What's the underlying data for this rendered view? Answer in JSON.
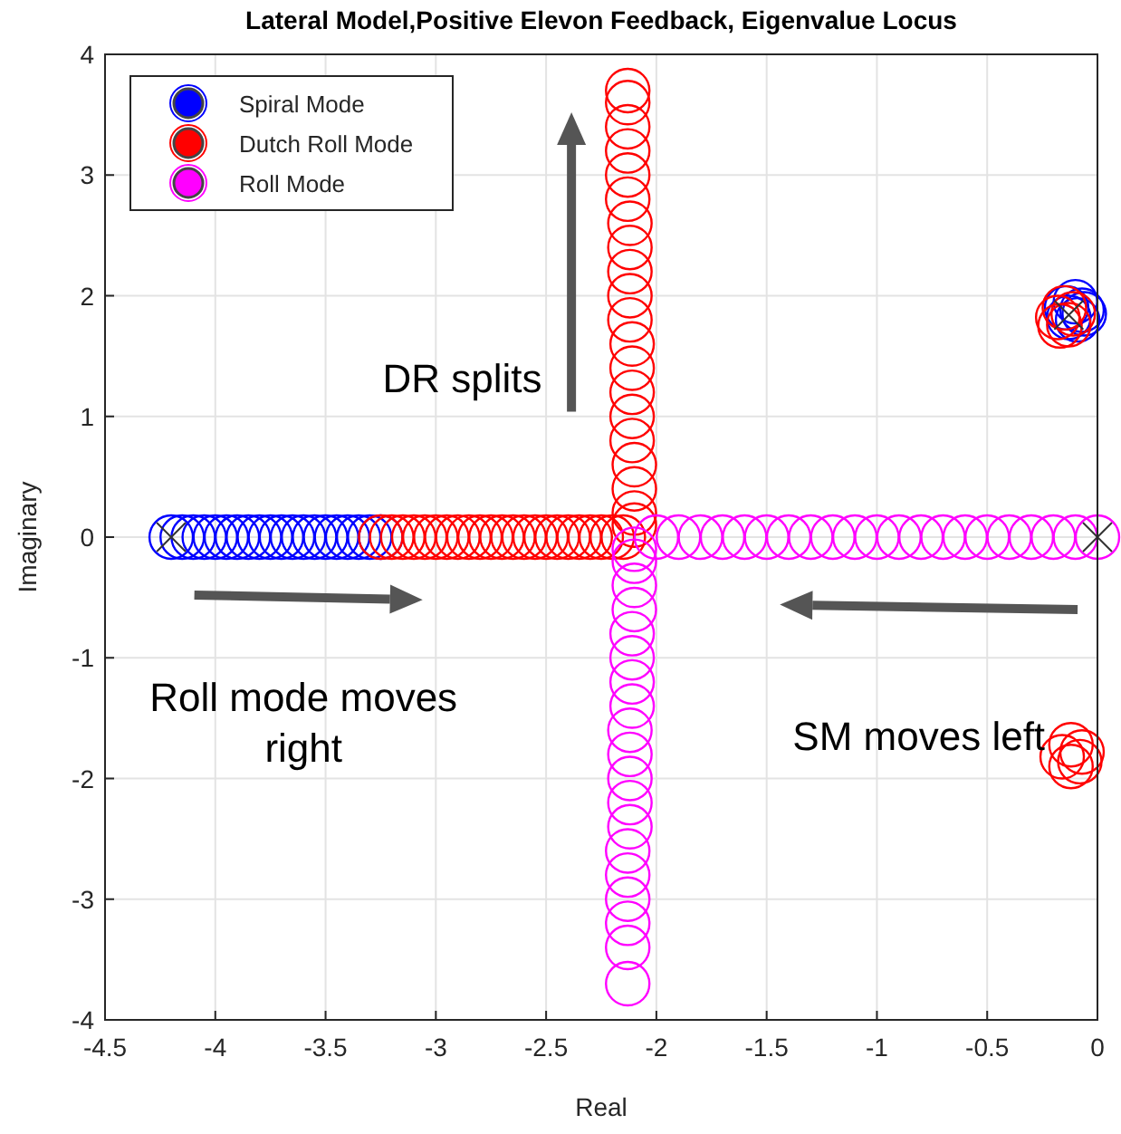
{
  "chart_data": {
    "type": "scatter",
    "title": "Lateral Model,Positive Elevon Feedback, Eigenvalue Locus",
    "xlabel": "Real",
    "ylabel": "Imaginary",
    "xlim": [
      -4.5,
      0
    ],
    "ylim": [
      -4,
      4
    ],
    "xticks": [
      -4.5,
      -4,
      -3.5,
      -3,
      -2.5,
      -2,
      -1.5,
      -1,
      -0.5,
      0
    ],
    "yticks": [
      -4,
      -3,
      -2,
      -1,
      0,
      1,
      2,
      3,
      4
    ],
    "grid": true,
    "legend": "top left",
    "marker": "circle",
    "annotations": [
      "DR splits",
      "Roll mode moves right",
      "SM moves left"
    ],
    "series": [
      {
        "name": "Spiral Mode",
        "color": "#0000ff",
        "x": [
          -4.2,
          -4.15,
          -4.1,
          -4.05,
          -4,
          -3.95,
          -3.9,
          -3.85,
          -3.8,
          -3.75,
          -3.7,
          -3.65,
          -3.6,
          -3.55,
          -3.5,
          -3.45,
          -3.4,
          -3.35,
          -3.3,
          -3.25,
          -0.07,
          -0.1,
          -0.14,
          -0.13,
          -0.09,
          -0.06
        ],
        "values": [
          0,
          0,
          0,
          0,
          0,
          0,
          0,
          0,
          0,
          0,
          0,
          0,
          0,
          0,
          0,
          0,
          0,
          0,
          0,
          0,
          1.88,
          1.95,
          1.9,
          1.82,
          1.8,
          1.85
        ]
      },
      {
        "name": "Dutch Roll Mode",
        "color": "#ff0000",
        "x": [
          -3.25,
          -3.2,
          -3.15,
          -3.1,
          -3.05,
          -3,
          -2.95,
          -2.9,
          -2.85,
          -2.8,
          -2.75,
          -2.7,
          -2.65,
          -2.6,
          -2.55,
          -2.5,
          -2.45,
          -2.4,
          -2.35,
          -2.3,
          -2.25,
          -2.2,
          -2.15,
          -2.1,
          -2.1,
          -2.1,
          -2.1,
          -2.11,
          -2.11,
          -2.11,
          -2.11,
          -2.11,
          -2.12,
          -2.12,
          -2.12,
          -2.12,
          -2.12,
          -2.13,
          -2.13,
          -2.13,
          -2.13,
          -2.13,
          -2.13,
          -0.18,
          -0.15,
          -0.11,
          -0.13,
          -0.17,
          -0.12,
          -0.07,
          -0.08,
          -0.12,
          -0.16
        ],
        "values": [
          0,
          0,
          0,
          0,
          0,
          0,
          0,
          0,
          0,
          0,
          0,
          0,
          0,
          0,
          0,
          0,
          0,
          0,
          0,
          0,
          0,
          0,
          0,
          0.1,
          0.2,
          0.4,
          0.6,
          0.8,
          1,
          1.2,
          1.4,
          1.6,
          1.8,
          2,
          2.2,
          2.4,
          2.6,
          2.8,
          3,
          3.2,
          3.4,
          3.6,
          3.7,
          1.82,
          1.9,
          1.85,
          1.76,
          1.75,
          -1.72,
          -1.78,
          -1.86,
          -1.9,
          -1.82
        ]
      },
      {
        "name": "Roll Mode",
        "color": "#ff00ff",
        "x": [
          0,
          -0.1,
          -0.2,
          -0.3,
          -0.4,
          -0.5,
          -0.6,
          -0.7,
          -0.8,
          -0.9,
          -1,
          -1.1,
          -1.2,
          -1.3,
          -1.4,
          -1.5,
          -1.6,
          -1.7,
          -1.8,
          -1.9,
          -2,
          -2.1,
          -2.1,
          -2.1,
          -2.1,
          -2.11,
          -2.11,
          -2.11,
          -2.11,
          -2.12,
          -2.12,
          -2.12,
          -2.12,
          -2.12,
          -2.13,
          -2.13,
          -2.13,
          -2.13,
          -2.13,
          -2.13
        ],
        "values": [
          0,
          0,
          0,
          0,
          0,
          0,
          0,
          0,
          0,
          0,
          0,
          0,
          0,
          0,
          0,
          0,
          0,
          0,
          0,
          0,
          0,
          -0.1,
          -0.2,
          -0.4,
          -0.6,
          -0.8,
          -1,
          -1.2,
          -1.4,
          -1.6,
          -1.8,
          -2,
          -2.2,
          -2.4,
          -2.6,
          -2.8,
          -3,
          -3.2,
          -3.4,
          -3.7
        ]
      },
      {
        "color": "#333333",
        "marker": "cross",
        "x": [
          -4.2,
          0,
          -0.13
        ],
        "values": [
          0,
          0,
          1.84
        ]
      }
    ]
  }
}
